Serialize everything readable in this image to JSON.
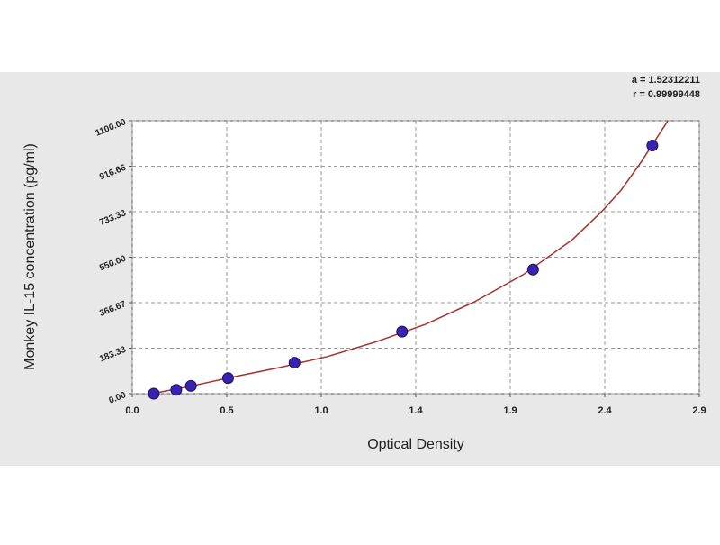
{
  "chart_data": {
    "type": "scatter",
    "xlabel": "Optical Density",
    "ylabel": "Monkey IL-15 concentration (pg/ml)",
    "annotations": [
      "a = 1.52312211",
      "r = 0.99999448"
    ],
    "x": [
      0.11,
      0.225,
      0.3,
      0.49,
      0.83,
      1.38,
      2.05,
      2.66
    ],
    "values": [
      0,
      15.6,
      31.25,
      62.5,
      125,
      250,
      500,
      1000
    ],
    "color": "#3a22b0",
    "fit": {
      "color": "#a4302c",
      "x": [
        0.1,
        0.3,
        0.5,
        0.75,
        1.0,
        1.25,
        1.5,
        1.75,
        2.0,
        2.25,
        2.4,
        2.5,
        2.6,
        2.74
      ],
      "values": [
        0,
        30,
        65,
        105,
        150,
        210,
        280,
        370,
        480,
        620,
        733,
        820,
        930,
        1100
      ]
    },
    "xlim": [
      0,
      2.9
    ],
    "xticks": [
      {
        "value": 0,
        "label": "0.0"
      },
      {
        "value": 0.4833,
        "label": "0.5"
      },
      {
        "value": 0.9667,
        "label": "1.0"
      },
      {
        "value": 1.45,
        "label": "1.4"
      },
      {
        "value": 1.9333,
        "label": "1.9"
      },
      {
        "value": 2.4167,
        "label": "2.4"
      },
      {
        "value": 2.9,
        "label": "2.9"
      }
    ],
    "ylim": [
      0,
      1100
    ],
    "yticks": [
      {
        "value": 0,
        "label": "0.00"
      },
      183.33,
      366.67,
      {
        "value": 550,
        "label": "550.00"
      },
      733.33,
      916.66,
      {
        "value": 1100,
        "label": "1100.00"
      }
    ],
    "grid": true
  }
}
